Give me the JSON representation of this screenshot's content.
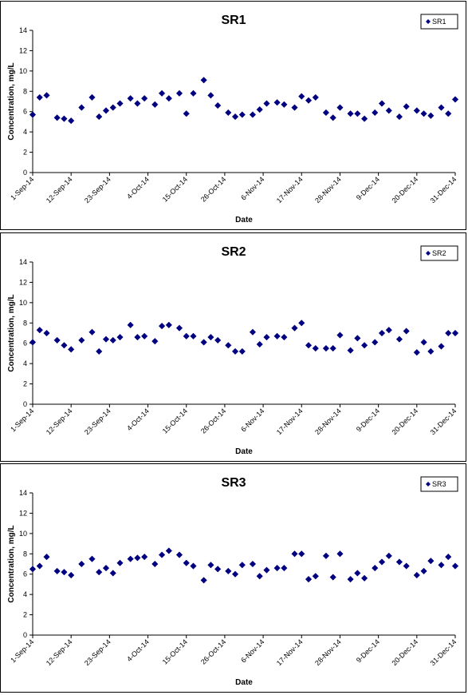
{
  "chart_data": [
    {
      "type": "scatter",
      "title": "SR1",
      "xlabel": "Date",
      "ylabel": "Concentration, mg/L",
      "ylim": [
        0,
        14
      ],
      "yticks": [
        "0",
        "2",
        "4",
        "6",
        "8",
        "10",
        "12",
        "14"
      ],
      "xlim": [
        "1-Sep-14",
        "31-Dec-14"
      ],
      "xticks": [
        "1-Sep-14",
        "12-Sep-14",
        "23-Sep-14",
        "4-Oct-14",
        "15-Oct-14",
        "26-Oct-14",
        "6-Nov-14",
        "17-Nov-14",
        "28-Nov-14",
        "9-Dec-14",
        "20-Dec-14",
        "31-Dec-14"
      ],
      "legend": "top-right",
      "color": "#000080",
      "series": [
        {
          "name": "SR1",
          "x": [
            "1-Sep-14",
            "3-Sep-14",
            "5-Sep-14",
            "8-Sep-14",
            "10-Sep-14",
            "12-Sep-14",
            "15-Sep-14",
            "18-Sep-14",
            "20-Sep-14",
            "22-Sep-14",
            "24-Sep-14",
            "26-Sep-14",
            "29-Sep-14",
            "1-Oct-14",
            "3-Oct-14",
            "6-Oct-14",
            "8-Oct-14",
            "10-Oct-14",
            "13-Oct-14",
            "15-Oct-14",
            "17-Oct-14",
            "20-Oct-14",
            "22-Oct-14",
            "24-Oct-14",
            "27-Oct-14",
            "29-Oct-14",
            "31-Oct-14",
            "3-Nov-14",
            "5-Nov-14",
            "7-Nov-14",
            "10-Nov-14",
            "12-Nov-14",
            "15-Nov-14",
            "17-Nov-14",
            "19-Nov-14",
            "21-Nov-14",
            "24-Nov-14",
            "26-Nov-14",
            "28-Nov-14",
            "1-Dec-14",
            "3-Dec-14",
            "5-Dec-14",
            "8-Dec-14",
            "10-Dec-14",
            "12-Dec-14",
            "15-Dec-14",
            "17-Dec-14",
            "20-Dec-14",
            "22-Dec-14",
            "24-Dec-14",
            "27-Dec-14",
            "29-Dec-14",
            "31-Dec-14"
          ],
          "y": [
            5.7,
            7.4,
            7.6,
            5.4,
            5.3,
            5.1,
            6.4,
            7.4,
            5.5,
            6.1,
            6.4,
            6.8,
            7.3,
            6.8,
            7.3,
            6.7,
            7.8,
            7.3,
            7.8,
            5.8,
            7.8,
            9.1,
            7.6,
            6.6,
            5.9,
            5.5,
            5.7,
            5.7,
            6.2,
            6.8,
            6.9,
            6.7,
            6.4,
            7.5,
            7.1,
            7.4,
            5.9,
            5.4,
            6.4,
            5.8,
            5.8,
            5.3,
            5.9,
            6.8,
            6.1,
            5.5,
            6.5,
            6.1,
            5.8,
            5.6,
            6.4,
            5.8,
            7.2
          ]
        }
      ]
    },
    {
      "type": "scatter",
      "title": "SR2",
      "xlabel": "Date",
      "ylabel": "Concentration, mg/L",
      "ylim": [
        0,
        14
      ],
      "yticks": [
        "0",
        "2",
        "4",
        "6",
        "8",
        "10",
        "12",
        "14"
      ],
      "xlim": [
        "1-Sep-14",
        "31-Dec-14"
      ],
      "xticks": [
        "1-Sep-14",
        "12-Sep-14",
        "23-Sep-14",
        "4-Oct-14",
        "15-Oct-14",
        "26-Oct-14",
        "6-Nov-14",
        "17-Nov-14",
        "28-Nov-14",
        "9-Dec-14",
        "20-Dec-14",
        "31-Dec-14"
      ],
      "legend": "top-right",
      "color": "#000080",
      "series": [
        {
          "name": "SR2",
          "x": [
            "1-Sep-14",
            "3-Sep-14",
            "5-Sep-14",
            "8-Sep-14",
            "10-Sep-14",
            "12-Sep-14",
            "15-Sep-14",
            "18-Sep-14",
            "20-Sep-14",
            "22-Sep-14",
            "24-Sep-14",
            "26-Sep-14",
            "29-Sep-14",
            "1-Oct-14",
            "3-Oct-14",
            "6-Oct-14",
            "8-Oct-14",
            "10-Oct-14",
            "13-Oct-14",
            "15-Oct-14",
            "17-Oct-14",
            "20-Oct-14",
            "22-Oct-14",
            "24-Oct-14",
            "27-Oct-14",
            "29-Oct-14",
            "31-Oct-14",
            "3-Nov-14",
            "5-Nov-14",
            "7-Nov-14",
            "10-Nov-14",
            "12-Nov-14",
            "15-Nov-14",
            "17-Nov-14",
            "19-Nov-14",
            "21-Nov-14",
            "24-Nov-14",
            "26-Nov-14",
            "28-Nov-14",
            "1-Dec-14",
            "3-Dec-14",
            "5-Dec-14",
            "8-Dec-14",
            "10-Dec-14",
            "12-Dec-14",
            "15-Dec-14",
            "17-Dec-14",
            "20-Dec-14",
            "22-Dec-14",
            "24-Dec-14",
            "27-Dec-14",
            "29-Dec-14",
            "31-Dec-14"
          ],
          "y": [
            6.1,
            7.3,
            7.0,
            6.3,
            5.8,
            5.4,
            6.3,
            7.1,
            5.2,
            6.4,
            6.3,
            6.6,
            7.8,
            6.6,
            6.7,
            6.2,
            7.7,
            7.8,
            7.5,
            6.7,
            6.7,
            6.1,
            6.6,
            6.3,
            5.8,
            5.2,
            5.2,
            7.1,
            5.9,
            6.6,
            6.7,
            6.6,
            7.5,
            8.0,
            5.8,
            5.5,
            5.5,
            5.5,
            6.8,
            5.3,
            6.5,
            5.8,
            6.1,
            7.0,
            7.3,
            6.4,
            7.2,
            5.1,
            6.1,
            5.2,
            5.7,
            7.0,
            7.0
          ]
        }
      ]
    },
    {
      "type": "scatter",
      "title": "SR3",
      "xlabel": "Date",
      "ylabel": "Concentration, mg/L",
      "ylim": [
        0,
        14
      ],
      "yticks": [
        "0",
        "2",
        "4",
        "6",
        "8",
        "10",
        "12",
        "14"
      ],
      "xlim": [
        "1-Sep-14",
        "31-Dec-14"
      ],
      "xticks": [
        "1-Sep-14",
        "12-Sep-14",
        "23-Sep-14",
        "4-Oct-14",
        "15-Oct-14",
        "26-Oct-14",
        "6-Nov-14",
        "17-Nov-14",
        "28-Nov-14",
        "9-Dec-14",
        "20-Dec-14",
        "31-Dec-14"
      ],
      "legend": "top-right",
      "color": "#000080",
      "series": [
        {
          "name": "SR3",
          "x": [
            "1-Sep-14",
            "3-Sep-14",
            "5-Sep-14",
            "8-Sep-14",
            "10-Sep-14",
            "12-Sep-14",
            "15-Sep-14",
            "18-Sep-14",
            "20-Sep-14",
            "22-Sep-14",
            "24-Sep-14",
            "26-Sep-14",
            "29-Sep-14",
            "1-Oct-14",
            "3-Oct-14",
            "6-Oct-14",
            "8-Oct-14",
            "10-Oct-14",
            "13-Oct-14",
            "15-Oct-14",
            "17-Oct-14",
            "20-Oct-14",
            "22-Oct-14",
            "24-Oct-14",
            "27-Oct-14",
            "29-Oct-14",
            "31-Oct-14",
            "3-Nov-14",
            "5-Nov-14",
            "7-Nov-14",
            "10-Nov-14",
            "12-Nov-14",
            "15-Nov-14",
            "17-Nov-14",
            "19-Nov-14",
            "21-Nov-14",
            "24-Nov-14",
            "26-Nov-14",
            "28-Nov-14",
            "1-Dec-14",
            "3-Dec-14",
            "5-Dec-14",
            "8-Dec-14",
            "10-Dec-14",
            "12-Dec-14",
            "15-Dec-14",
            "17-Dec-14",
            "20-Dec-14",
            "22-Dec-14",
            "24-Dec-14",
            "27-Dec-14",
            "29-Dec-14",
            "31-Dec-14"
          ],
          "y": [
            6.5,
            6.8,
            7.7,
            6.3,
            6.2,
            5.9,
            7.0,
            7.5,
            6.2,
            6.6,
            6.1,
            7.1,
            7.5,
            7.6,
            7.7,
            7.0,
            7.9,
            8.3,
            7.9,
            7.1,
            6.8,
            5.4,
            6.9,
            6.5,
            6.3,
            6.0,
            6.9,
            7.0,
            5.8,
            6.4,
            6.6,
            6.6,
            8.0,
            8.0,
            5.5,
            5.8,
            7.8,
            5.7,
            8.0,
            5.5,
            6.1,
            5.6,
            6.6,
            7.2,
            7.8,
            7.2,
            6.8,
            5.9,
            6.3,
            7.3,
            6.9,
            7.7,
            6.8
          ]
        }
      ]
    }
  ]
}
